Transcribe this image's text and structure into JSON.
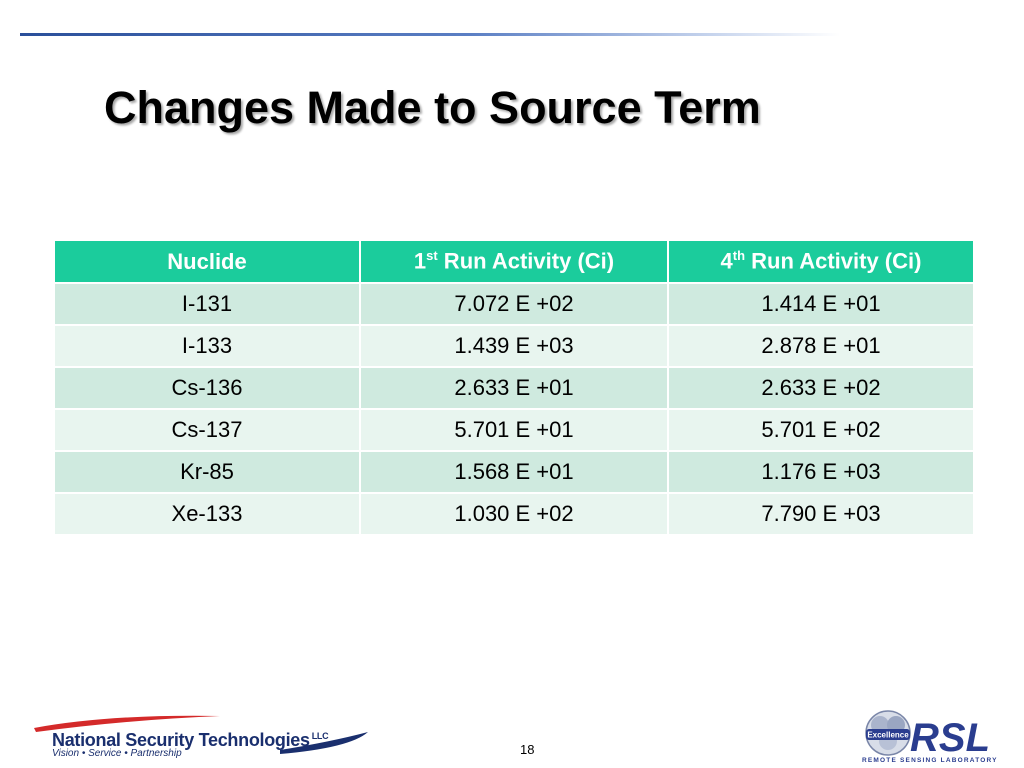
{
  "slide": {
    "title": "Changes Made to Source Term",
    "page_number": "18"
  },
  "table": {
    "headers": [
      {
        "prefix": "Nuclide",
        "sup": "",
        "suffix": ""
      },
      {
        "prefix": "1",
        "sup": "st",
        "suffix": " Run Activity (Ci)"
      },
      {
        "prefix": "4",
        "sup": "th",
        "suffix": " Run Activity (Ci)"
      }
    ],
    "rows": [
      [
        "I-131",
        "7.072 E +02",
        "1.414 E +01"
      ],
      [
        "I-133",
        "1.439 E +03",
        "2.878 E +01"
      ],
      [
        "Cs-136",
        "2.633 E +01",
        "2.633 E +02"
      ],
      [
        "Cs-137",
        "5.701 E +01",
        "5.701 E +02"
      ],
      [
        "Kr-85",
        "1.568 E +01",
        "1.176 E +03"
      ],
      [
        "Xe-133",
        "1.030 E +02",
        "7.790 E +03"
      ]
    ]
  },
  "footer": {
    "nstec": {
      "name": "National Security Technologies",
      "llc": "LLC",
      "tagline": "Vision • Service • Partnership"
    },
    "rsl": {
      "badge": "Excellence",
      "letters": "RSL",
      "subtitle": "REMOTE SENSING LABORATORY"
    }
  },
  "colors": {
    "header_bg": "#1bcc9c",
    "row_odd": "#cfeadf",
    "row_even": "#e8f5ef",
    "top_rule": "#2a4f9a",
    "logo_navy": "#1a2f6e",
    "logo_red": "#d42a2a"
  }
}
